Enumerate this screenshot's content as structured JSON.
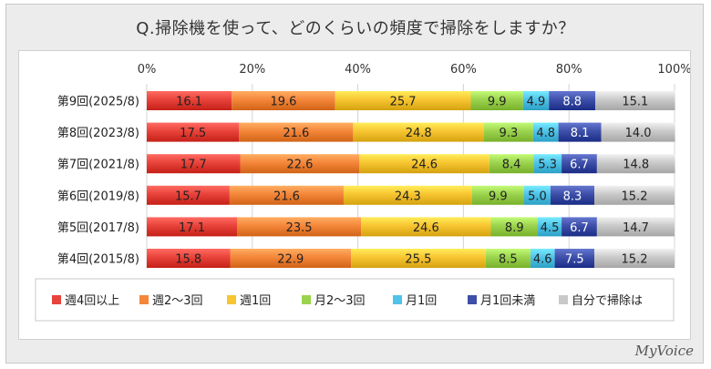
{
  "title": "Q.掃除機を使って、どのくらいの頻度で掃除をしますか？",
  "brand": "MyVoice",
  "chart_data": {
    "type": "bar",
    "orientation": "horizontal",
    "stacked": "percent",
    "xlim": [
      0,
      100
    ],
    "x_ticks": [
      "0%",
      "20%",
      "40%",
      "60%",
      "80%",
      "100%"
    ],
    "categories": [
      "第9回(2025/8)",
      "第8回(2023/8)",
      "第7回(2021/8)",
      "第6回(2019/8)",
      "第5回(2017/8)",
      "第4回(2015/8)"
    ],
    "series": [
      {
        "name": "週4回以上",
        "color": "#e8433a",
        "values": [
          16.1,
          17.5,
          17.7,
          15.7,
          17.1,
          15.8
        ]
      },
      {
        "name": "週2～3回",
        "color": "#f4863a",
        "values": [
          19.6,
          21.6,
          22.6,
          21.6,
          23.5,
          22.9
        ]
      },
      {
        "name": "週1回",
        "color": "#f7c531",
        "values": [
          25.7,
          24.8,
          24.6,
          24.3,
          24.6,
          25.5
        ]
      },
      {
        "name": "月2～3回",
        "color": "#9bd34e",
        "values": [
          9.9,
          9.3,
          8.4,
          9.9,
          8.9,
          8.5
        ]
      },
      {
        "name": "月1回",
        "color": "#4fc3e8",
        "values": [
          4.9,
          4.8,
          5.3,
          5.0,
          4.5,
          4.6
        ]
      },
      {
        "name": "月1回未満",
        "color": "#3d4fa8",
        "values": [
          8.8,
          8.1,
          6.7,
          8.3,
          6.7,
          7.5
        ]
      },
      {
        "name": "自分で掃除は",
        "color": "#c9c9c9",
        "values": [
          15.1,
          14.0,
          14.8,
          15.2,
          14.7,
          15.2
        ]
      }
    ],
    "legend_position": "bottom",
    "grid": true
  }
}
